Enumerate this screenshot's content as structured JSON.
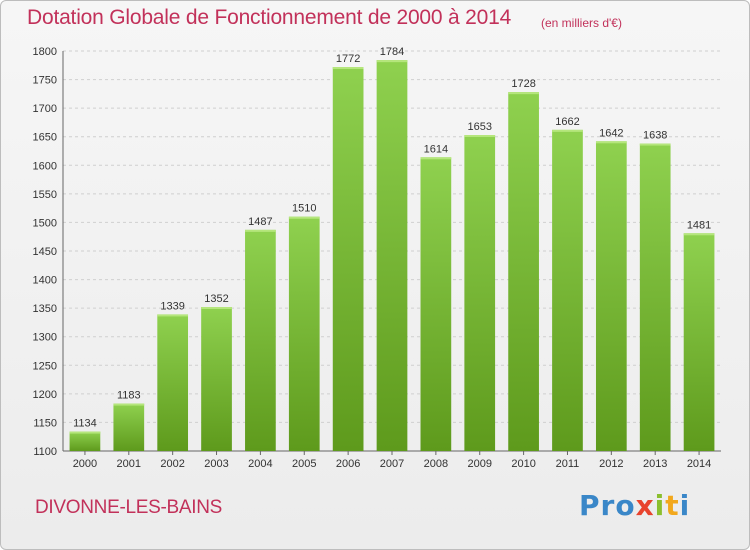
{
  "header": {
    "title": "Dotation Globale de Fonctionnement de 2000 à 2014",
    "subtitle": "(en milliers d'€)"
  },
  "footer": {
    "commune": "DIVONNE-LES-BAINS",
    "logo_letters": [
      {
        "char": "P",
        "color": "#3a87c8"
      },
      {
        "char": "r",
        "color": "#3a87c8"
      },
      {
        "char": "o",
        "color": "#3a87c8"
      },
      {
        "char": "x",
        "color": "#e8432d"
      },
      {
        "char": "i",
        "color": "#8bbf2e"
      },
      {
        "char": "t",
        "color": "#f2a81d"
      },
      {
        "char": "i",
        "color": "#3a87c8"
      }
    ]
  },
  "chart_data": {
    "type": "bar",
    "categories": [
      "2000",
      "2001",
      "2002",
      "2003",
      "2004",
      "2005",
      "2006",
      "2007",
      "2008",
      "2009",
      "2010",
      "2011",
      "2012",
      "2013",
      "2014"
    ],
    "values": [
      1134,
      1183,
      1339,
      1352,
      1487,
      1510,
      1772,
      1784,
      1614,
      1653,
      1728,
      1662,
      1642,
      1638,
      1481
    ],
    "ylim": [
      1100,
      1800
    ],
    "yticks": [
      1100,
      1150,
      1200,
      1250,
      1300,
      1350,
      1400,
      1450,
      1500,
      1550,
      1600,
      1650,
      1700,
      1750,
      1800
    ],
    "grid": true,
    "bar_color_top": "#8fd14f",
    "bar_color_bottom": "#5e9a1c"
  }
}
